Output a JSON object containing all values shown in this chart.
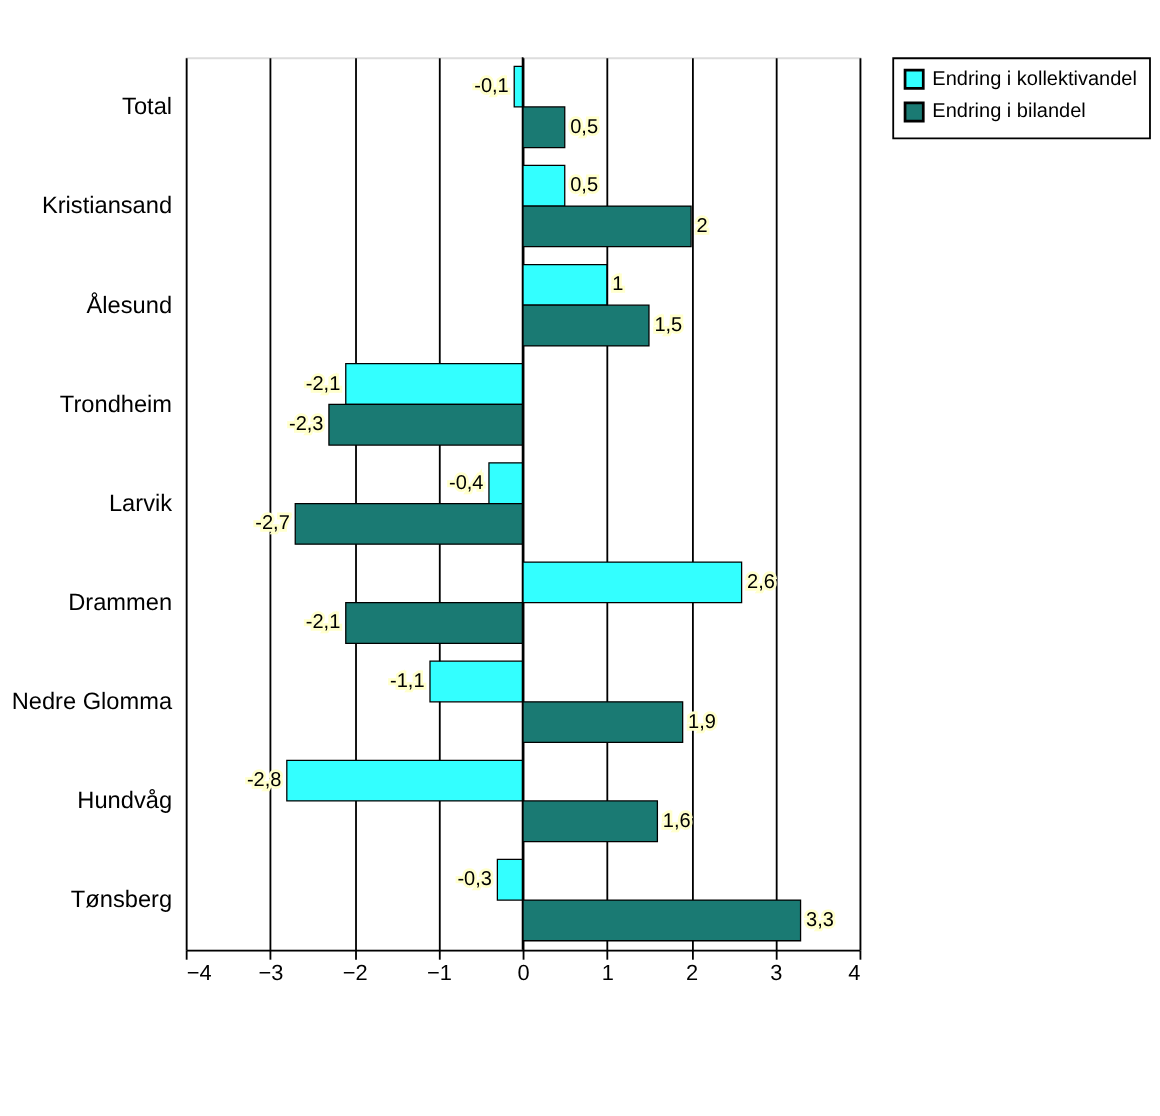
{
  "chart_data": {
    "type": "bar",
    "orientation": "horizontal",
    "categories": [
      "Total",
      "Kristiansand",
      "Ålesund",
      "Trondheim",
      "Larvik",
      "Drammen",
      "Nedre Glomma",
      "Hundvåg",
      "Tønsberg"
    ],
    "series": [
      {
        "name": "Endring i kollektivandel",
        "color": "#33ffff",
        "values": [
          -0.1,
          0.5,
          1,
          -2.1,
          -0.4,
          2.6,
          -1.1,
          -2.8,
          -0.3
        ],
        "value_labels": [
          "-0,1",
          "0,5",
          "1",
          "-2,1",
          "-0,4",
          "2,6",
          "-1,1",
          "-2,8",
          "-0,3"
        ]
      },
      {
        "name": "Endring i bilandel",
        "color": "#1a7a73",
        "values": [
          0.5,
          2,
          1.5,
          -2.3,
          -2.7,
          -2.1,
          1.9,
          1.6,
          3.3
        ],
        "value_labels": [
          "0,5",
          "2",
          "1,5",
          "-2,3",
          "-2,7",
          "-2,1",
          "1,9",
          "1,6",
          "3,3"
        ]
      }
    ],
    "xlim": [
      -4,
      4
    ],
    "xticks": [
      -4,
      -3,
      -2,
      -1,
      0,
      1,
      2,
      3,
      4
    ],
    "grid": "x",
    "legend": "right"
  }
}
